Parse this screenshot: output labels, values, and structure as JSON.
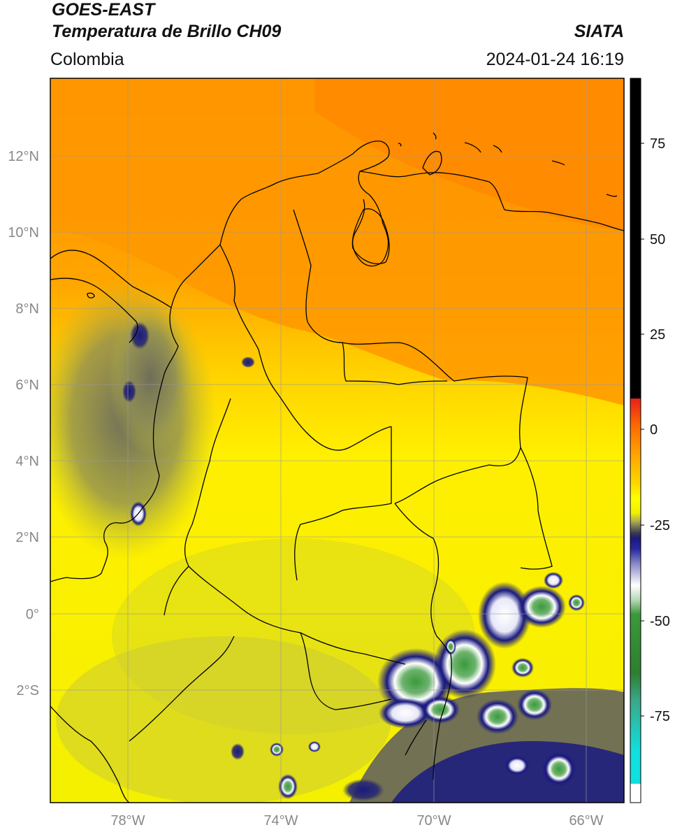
{
  "header": {
    "satellite": "GOES-EAST",
    "product": "Temperatura de Brillo CH09",
    "region": "Colombia",
    "organization": "SIATA",
    "datetime": "2024-01-24 16:19"
  },
  "map": {
    "lon_ticks": [
      "78°W",
      "74°W",
      "70°W",
      "66°W"
    ],
    "lat_ticks": [
      "12°N",
      "10°N",
      "8°N",
      "6°N",
      "4°N",
      "2°N",
      "0°",
      "2°S"
    ],
    "gridlines": true
  },
  "colorbar": {
    "tick_labels": [
      "75",
      "50",
      "25",
      "0",
      "-25",
      "-50",
      "-75"
    ],
    "colors": {
      "hot": "#000000",
      "red": "#e8201a",
      "orange": "#ff8c00",
      "yellow": "#ffff00",
      "olive": "#8b8b3a",
      "navy": "#1a1a80",
      "white": "#ffffff",
      "green": "#3a9a3a",
      "cyan": "#10e0e0"
    }
  }
}
